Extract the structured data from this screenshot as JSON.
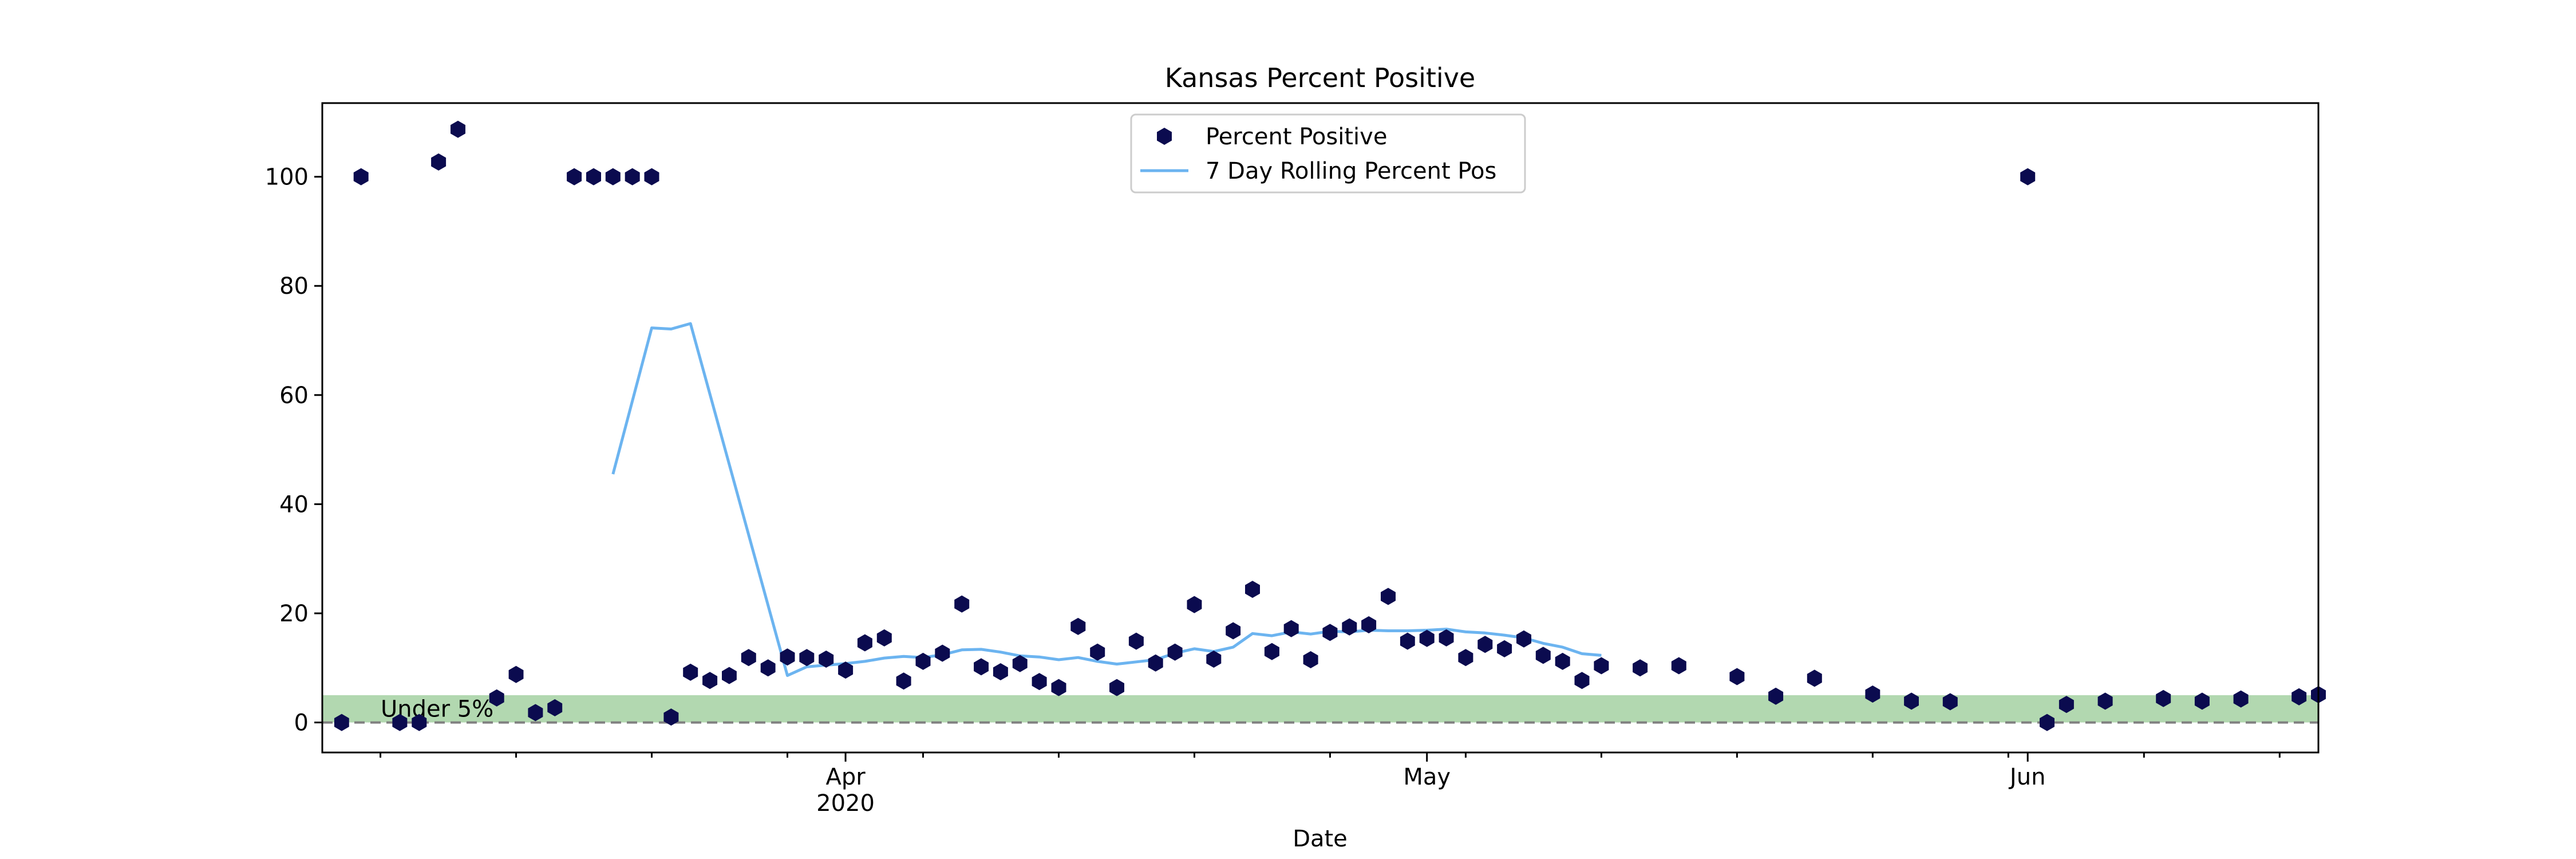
{
  "chart_data": {
    "type": "scatter",
    "title": "Kansas Percent Positive",
    "xlabel": "Date",
    "ylabel": "",
    "x_axis": {
      "type": "date",
      "range": [
        "2020-03-05",
        "2020-06-16"
      ],
      "major_ticks": [
        {
          "date": "2020-04-01",
          "label": "Apr",
          "sublabel": "2020"
        },
        {
          "date": "2020-05-01",
          "label": "May",
          "sublabel": ""
        },
        {
          "date": "2020-06-01",
          "label": "Jun",
          "sublabel": ""
        }
      ],
      "minor_tick_dates": [
        "2020-03-08",
        "2020-03-15",
        "2020-03-22",
        "2020-03-29",
        "2020-04-05",
        "2020-04-12",
        "2020-04-19",
        "2020-04-26",
        "2020-05-03",
        "2020-05-10",
        "2020-05-17",
        "2020-05-24",
        "2020-05-31",
        "2020-06-07",
        "2020-06-14"
      ]
    },
    "y_axis": {
      "range": [
        -5.5,
        113.5
      ],
      "ticks": [
        0,
        20,
        40,
        60,
        80,
        100
      ]
    },
    "grid": false,
    "legend": {
      "placement": "upper center",
      "entries": [
        {
          "label": "Percent Positive",
          "marker": "hexagon",
          "color": "#0b0b4f"
        },
        {
          "label": "7 Day Rolling Percent Pos",
          "marker": "line",
          "color": "#6cb4f0"
        }
      ]
    },
    "band": {
      "label": "Under 5%",
      "from": 0,
      "to": 5,
      "color": "#b2d8b0"
    },
    "reference_line": {
      "y": 0,
      "style": "dashed",
      "color": "#808080"
    },
    "series": [
      {
        "name": "Percent Positive",
        "kind": "scatter",
        "color": "#0b0b4f",
        "points": [
          [
            "2020-03-06",
            0
          ],
          [
            "2020-03-07",
            100
          ],
          [
            "2020-03-09",
            0
          ],
          [
            "2020-03-10",
            0
          ],
          [
            "2020-03-11",
            102.7
          ],
          [
            "2020-03-12",
            108.7
          ],
          [
            "2020-03-14",
            4.5
          ],
          [
            "2020-03-15",
            8.8
          ],
          [
            "2020-03-16",
            1.8
          ],
          [
            "2020-03-17",
            2.7
          ],
          [
            "2020-03-18",
            100
          ],
          [
            "2020-03-19",
            100
          ],
          [
            "2020-03-20",
            100
          ],
          [
            "2020-03-21",
            100
          ],
          [
            "2020-03-22",
            100
          ],
          [
            "2020-03-23",
            1
          ],
          [
            "2020-03-24",
            9.2
          ],
          [
            "2020-03-25",
            7.7
          ],
          [
            "2020-03-26",
            8.6
          ],
          [
            "2020-03-27",
            11.9
          ],
          [
            "2020-03-28",
            10
          ],
          [
            "2020-03-29",
            12
          ],
          [
            "2020-03-30",
            11.9
          ],
          [
            "2020-03-31",
            11.6
          ],
          [
            "2020-04-01",
            9.6
          ],
          [
            "2020-04-02",
            14.6
          ],
          [
            "2020-04-03",
            15.5
          ],
          [
            "2020-04-04",
            7.6
          ],
          [
            "2020-04-05",
            11.2
          ],
          [
            "2020-04-06",
            12.7
          ],
          [
            "2020-04-07",
            21.7
          ],
          [
            "2020-04-08",
            10.2
          ],
          [
            "2020-04-09",
            9.3
          ],
          [
            "2020-04-10",
            10.8
          ],
          [
            "2020-04-11",
            7.5
          ],
          [
            "2020-04-12",
            6.4
          ],
          [
            "2020-04-13",
            17.6
          ],
          [
            "2020-04-14",
            12.9
          ],
          [
            "2020-04-15",
            6.4
          ],
          [
            "2020-04-16",
            14.9
          ],
          [
            "2020-04-17",
            10.9
          ],
          [
            "2020-04-18",
            12.9
          ],
          [
            "2020-04-19",
            21.6
          ],
          [
            "2020-04-20",
            11.6
          ],
          [
            "2020-04-21",
            16.8
          ],
          [
            "2020-04-22",
            24.4
          ],
          [
            "2020-04-23",
            13
          ],
          [
            "2020-04-24",
            17.2
          ],
          [
            "2020-04-25",
            11.5
          ],
          [
            "2020-04-26",
            16.5
          ],
          [
            "2020-04-27",
            17.5
          ],
          [
            "2020-04-28",
            17.9
          ],
          [
            "2020-04-29",
            23.1
          ],
          [
            "2020-04-30",
            14.9
          ],
          [
            "2020-05-01",
            15.4
          ],
          [
            "2020-05-02",
            15.5
          ],
          [
            "2020-05-03",
            11.9
          ],
          [
            "2020-05-04",
            14.3
          ],
          [
            "2020-05-05",
            13.5
          ],
          [
            "2020-05-06",
            15.3
          ],
          [
            "2020-05-07",
            12.3
          ],
          [
            "2020-05-08",
            11.2
          ],
          [
            "2020-05-09",
            7.7
          ],
          [
            "2020-05-10",
            10.4
          ],
          [
            "2020-05-12",
            10
          ],
          [
            "2020-05-14",
            10.4
          ],
          [
            "2020-05-17",
            8.4
          ],
          [
            "2020-05-19",
            4.8
          ],
          [
            "2020-05-21",
            8.1
          ],
          [
            "2020-05-24",
            5.2
          ],
          [
            "2020-05-26",
            3.9
          ],
          [
            "2020-05-28",
            3.8
          ],
          [
            "2020-06-01",
            100
          ],
          [
            "2020-06-02",
            0
          ],
          [
            "2020-06-03",
            3.3
          ],
          [
            "2020-06-05",
            3.9
          ],
          [
            "2020-06-08",
            4.4
          ],
          [
            "2020-06-10",
            3.9
          ],
          [
            "2020-06-12",
            4.3
          ],
          [
            "2020-06-15",
            4.7
          ],
          [
            "2020-06-16",
            5.1
          ]
        ]
      },
      {
        "name": "7 Day Rolling Percent Pos",
        "kind": "line",
        "color": "#6cb4f0",
        "points": [
          [
            "2020-03-20",
            45.5
          ],
          [
            "2020-03-22",
            72.3
          ],
          [
            "2020-03-23",
            72.1
          ],
          [
            "2020-03-24",
            73.1
          ],
          [
            "2020-03-29",
            8.6
          ],
          [
            "2020-03-30",
            10.2
          ],
          [
            "2020-03-31",
            10.5
          ],
          [
            "2020-04-01",
            10.8
          ],
          [
            "2020-04-02",
            11.2
          ],
          [
            "2020-04-03",
            11.8
          ],
          [
            "2020-04-04",
            12.1
          ],
          [
            "2020-04-05",
            11.9
          ],
          [
            "2020-04-06",
            12.4
          ],
          [
            "2020-04-07",
            13.3
          ],
          [
            "2020-04-08",
            13.4
          ],
          [
            "2020-04-09",
            12.9
          ],
          [
            "2020-04-10",
            12.2
          ],
          [
            "2020-04-11",
            12
          ],
          [
            "2020-04-12",
            11.5
          ],
          [
            "2020-04-13",
            11.9
          ],
          [
            "2020-04-14",
            11.2
          ],
          [
            "2020-04-15",
            10.7
          ],
          [
            "2020-04-16",
            11.1
          ],
          [
            "2020-04-17",
            11.5
          ],
          [
            "2020-04-18",
            12.7
          ],
          [
            "2020-04-19",
            13.5
          ],
          [
            "2020-04-20",
            13
          ],
          [
            "2020-04-21",
            13.8
          ],
          [
            "2020-04-22",
            16.3
          ],
          [
            "2020-04-23",
            15.9
          ],
          [
            "2020-04-24",
            16.6
          ],
          [
            "2020-04-25",
            16.2
          ],
          [
            "2020-04-26",
            16.7
          ],
          [
            "2020-04-27",
            16.6
          ],
          [
            "2020-04-28",
            16.9
          ],
          [
            "2020-04-29",
            16.8
          ],
          [
            "2020-04-30",
            16.8
          ],
          [
            "2020-05-01",
            16.9
          ],
          [
            "2020-05-02",
            17.1
          ],
          [
            "2020-05-03",
            16.6
          ],
          [
            "2020-05-04",
            16.4
          ],
          [
            "2020-05-05",
            16
          ],
          [
            "2020-05-06",
            15.5
          ],
          [
            "2020-05-07",
            14.5
          ],
          [
            "2020-05-08",
            13.8
          ],
          [
            "2020-05-09",
            12.6
          ],
          [
            "2020-05-10",
            12.3
          ]
        ]
      }
    ]
  }
}
